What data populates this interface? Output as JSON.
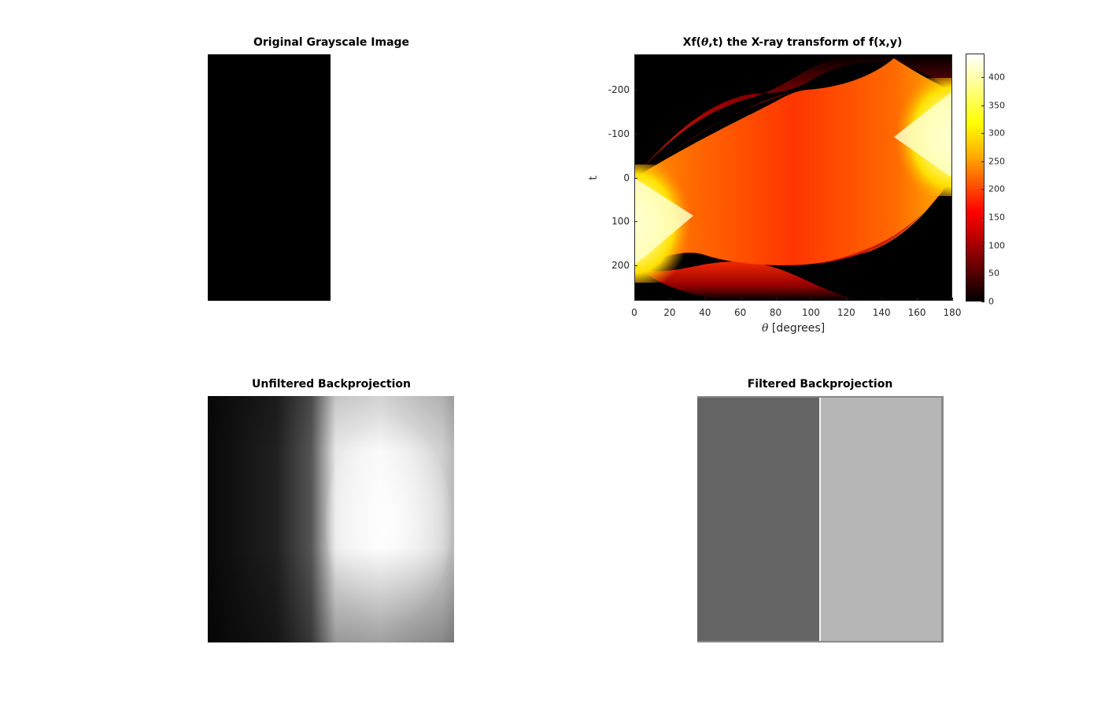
{
  "figure": {
    "panels": [
      {
        "id": "original",
        "title": "Original Grayscale Image"
      },
      {
        "id": "xray",
        "title_prefix": "Xf(",
        "title_theta": "θ",
        "title_suffix": ",t) the X-ray transform of f(x,y)"
      },
      {
        "id": "unfiltered",
        "title": "Unfiltered Backprojection"
      },
      {
        "id": "filtered",
        "title": "Filtered Backprojection"
      }
    ]
  },
  "chart_data": [
    {
      "type": "heatmap",
      "title": "Original Grayscale Image",
      "image": "binary rectangle (black)",
      "colormap": "gray"
    },
    {
      "type": "heatmap",
      "title": "Xf(θ,t) the X-ray transform of f(x,y)",
      "xlabel_symbol": "θ",
      "xlabel_text": " [degrees]",
      "ylabel": "t",
      "xlim": [
        0,
        180
      ],
      "ylim": [
        280,
        -280
      ],
      "x_ticks": [
        "0",
        "20",
        "40",
        "60",
        "80",
        "100",
        "120",
        "140",
        "160",
        "180"
      ],
      "x_tick_values": [
        0,
        20,
        40,
        60,
        80,
        100,
        120,
        140,
        160,
        180
      ],
      "y_ticks": [
        "-200",
        "-100",
        "0",
        "100",
        "200"
      ],
      "y_tick_values": [
        -200,
        -100,
        0,
        100,
        200
      ],
      "colormap": "hot",
      "colorbar": {
        "ticks": [
          "0",
          "50",
          "100",
          "150",
          "200",
          "250",
          "300",
          "350",
          "400"
        ],
        "tick_values": [
          0,
          50,
          100,
          150,
          200,
          250,
          300,
          350,
          400
        ],
        "range": [
          0,
          442
        ]
      }
    },
    {
      "type": "heatmap",
      "title": "Unfiltered Backprojection",
      "colormap": "gray"
    },
    {
      "type": "heatmap",
      "title": "Filtered Backprojection",
      "colormap": "gray"
    }
  ],
  "colors": {
    "hot_dark": "#000000",
    "hot_red": "#ff0000",
    "hot_yellow": "#ffff00",
    "hot_white": "#ffffff",
    "filtered_left": "#636363",
    "filtered_right": "#b5b5b5"
  }
}
